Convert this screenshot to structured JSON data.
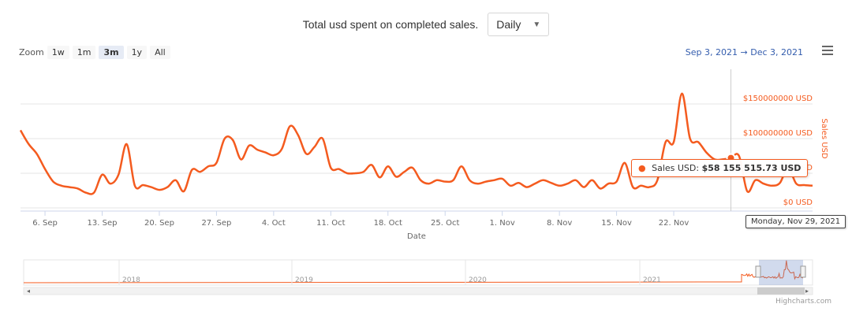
{
  "header": {
    "title": "Total usd spent on completed sales.",
    "period_select": "Daily"
  },
  "zoom": {
    "label": "Zoom",
    "buttons": [
      "1w",
      "1m",
      "3m",
      "1y",
      "All"
    ],
    "active": "3m"
  },
  "range": {
    "from": "Sep 3, 2021",
    "arrow": "→",
    "to": "Dec 3, 2021"
  },
  "tooltip": {
    "series": "Sales USD:",
    "value": "$58 155 515.73 USD"
  },
  "crosshair_date": "Monday, Nov 29, 2021",
  "credits": "Highcharts.com",
  "colors": {
    "series": "#f45b1f",
    "axis_text": "#666666",
    "range_text": "#335cad"
  },
  "chart_data": {
    "type": "line",
    "xlabel": "Date",
    "ylabel": "Sales USD",
    "y_tick_labels": [
      "$0 USD",
      "$50000000 USD",
      "$100000000 USD",
      "$150000000 USD"
    ],
    "y_ticks": [
      0,
      50000000,
      100000000,
      150000000
    ],
    "ylim": [
      0,
      200000000
    ],
    "x_tick_labels": [
      "6. Sep",
      "13. Sep",
      "20. Sep",
      "27. Sep",
      "4. Oct",
      "11. Oct",
      "18. Oct",
      "25. Oct",
      "1. Nov",
      "8. Nov",
      "15. Nov",
      "22. Nov"
    ],
    "x_start": "2021-09-03",
    "navigator_years": [
      "2018",
      "2019",
      "2020",
      "2021"
    ],
    "series": [
      {
        "name": "Sales USD",
        "values": [
          112000000,
          92000000,
          78000000,
          56000000,
          38000000,
          32000000,
          30000000,
          28000000,
          22000000,
          22000000,
          48000000,
          35000000,
          48000000,
          92000000,
          32000000,
          33000000,
          30000000,
          26000000,
          30000000,
          40000000,
          24000000,
          55000000,
          52000000,
          60000000,
          65000000,
          100000000,
          98000000,
          70000000,
          90000000,
          84000000,
          80000000,
          76000000,
          85000000,
          118000000,
          105000000,
          78000000,
          88000000,
          100000000,
          58000000,
          56000000,
          50000000,
          50000000,
          52000000,
          62000000,
          44000000,
          60000000,
          45000000,
          52000000,
          58000000,
          40000000,
          35000000,
          40000000,
          38000000,
          40000000,
          60000000,
          40000000,
          35000000,
          38000000,
          40000000,
          42000000,
          32000000,
          36000000,
          30000000,
          35000000,
          40000000,
          36000000,
          32000000,
          35000000,
          40000000,
          30000000,
          40000000,
          28000000,
          35000000,
          38000000,
          65000000,
          30000000,
          32000000,
          30000000,
          40000000,
          95000000,
          95000000,
          165000000,
          100000000,
          95000000,
          80000000,
          70000000,
          70000000,
          72000000,
          75000000,
          24000000,
          40000000,
          35000000,
          32000000,
          36000000,
          58155515.73,
          35000000,
          33000000,
          32000000
        ]
      }
    ]
  }
}
